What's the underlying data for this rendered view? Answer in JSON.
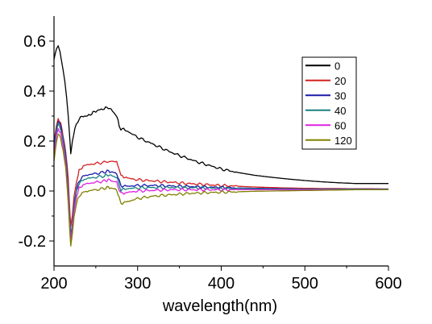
{
  "chart_data": {
    "type": "line",
    "title": "",
    "xlabel": "wavelength(nm)",
    "ylabel": "",
    "xlim": [
      200,
      600
    ],
    "ylim": [
      -0.3,
      0.7
    ],
    "xticks": [
      200,
      300,
      400,
      500,
      600
    ],
    "xtick_labels": [
      "200",
      "300",
      "400",
      "500",
      "600"
    ],
    "yticks": [
      -0.2,
      0.0,
      0.2,
      0.4,
      0.6
    ],
    "ytick_labels": [
      "-0.2",
      "0.0",
      "0.2",
      "0.4",
      "0.6"
    ],
    "grid": false,
    "legend_position": "top-right",
    "series": [
      {
        "name": "0",
        "color": "#000000",
        "points": [
          [
            200,
            0.53
          ],
          [
            203,
            0.57
          ],
          [
            205,
            0.58
          ],
          [
            207,
            0.56
          ],
          [
            209,
            0.52
          ],
          [
            211,
            0.48
          ],
          [
            213,
            0.44
          ],
          [
            215,
            0.38
          ],
          [
            217,
            0.3
          ],
          [
            219,
            0.2
          ],
          [
            220,
            0.15
          ],
          [
            222,
            0.2
          ],
          [
            225,
            0.25
          ],
          [
            230,
            0.29
          ],
          [
            235,
            0.3
          ],
          [
            240,
            0.3
          ],
          [
            245,
            0.31
          ],
          [
            250,
            0.32
          ],
          [
            255,
            0.325
          ],
          [
            260,
            0.33
          ],
          [
            265,
            0.335
          ],
          [
            270,
            0.32
          ],
          [
            275,
            0.3
          ],
          [
            278,
            0.26
          ],
          [
            280,
            0.25
          ],
          [
            285,
            0.245
          ],
          [
            290,
            0.235
          ],
          [
            300,
            0.215
          ],
          [
            310,
            0.2
          ],
          [
            320,
            0.185
          ],
          [
            330,
            0.17
          ],
          [
            340,
            0.155
          ],
          [
            350,
            0.142
          ],
          [
            360,
            0.13
          ],
          [
            370,
            0.118
          ],
          [
            380,
            0.108
          ],
          [
            390,
            0.098
          ],
          [
            400,
            0.088
          ],
          [
            420,
            0.074
          ],
          [
            440,
            0.063
          ],
          [
            460,
            0.055
          ],
          [
            480,
            0.048
          ],
          [
            500,
            0.042
          ],
          [
            520,
            0.037
          ],
          [
            540,
            0.033
          ],
          [
            555,
            0.031
          ],
          [
            560,
            0.03
          ],
          [
            580,
            0.03
          ],
          [
            600,
            0.03
          ]
        ]
      },
      {
        "name": "20",
        "color": "#d42020",
        "points": [
          [
            200,
            0.2
          ],
          [
            203,
            0.26
          ],
          [
            205,
            0.29
          ],
          [
            208,
            0.27
          ],
          [
            211,
            0.22
          ],
          [
            214,
            0.16
          ],
          [
            217,
            0.05
          ],
          [
            219,
            -0.08
          ],
          [
            220,
            -0.14
          ],
          [
            222,
            -0.1
          ],
          [
            224,
            -0.02
          ],
          [
            227,
            0.04
          ],
          [
            230,
            0.08
          ],
          [
            235,
            0.1
          ],
          [
            240,
            0.105
          ],
          [
            250,
            0.11
          ],
          [
            260,
            0.115
          ],
          [
            270,
            0.12
          ],
          [
            275,
            0.115
          ],
          [
            278,
            0.09
          ],
          [
            280,
            0.06
          ],
          [
            285,
            0.055
          ],
          [
            290,
            0.05
          ],
          [
            300,
            0.045
          ],
          [
            320,
            0.04
          ],
          [
            340,
            0.035
          ],
          [
            360,
            0.03
          ],
          [
            380,
            0.026
          ],
          [
            400,
            0.022
          ],
          [
            420,
            0.019
          ],
          [
            440,
            0.016
          ],
          [
            460,
            0.014
          ],
          [
            480,
            0.012
          ],
          [
            500,
            0.011
          ],
          [
            520,
            0.01
          ],
          [
            540,
            0.01
          ],
          [
            560,
            0.009
          ],
          [
            580,
            0.009
          ],
          [
            600,
            0.008
          ]
        ]
      },
      {
        "name": "30",
        "color": "#1a1aa8",
        "points": [
          [
            200,
            0.18
          ],
          [
            203,
            0.25
          ],
          [
            205,
            0.28
          ],
          [
            208,
            0.26
          ],
          [
            211,
            0.21
          ],
          [
            214,
            0.14
          ],
          [
            217,
            0.02
          ],
          [
            219,
            -0.12
          ],
          [
            220,
            -0.18
          ],
          [
            222,
            -0.13
          ],
          [
            224,
            -0.05
          ],
          [
            227,
            0.01
          ],
          [
            230,
            0.04
          ],
          [
            235,
            0.06
          ],
          [
            240,
            0.065
          ],
          [
            250,
            0.07
          ],
          [
            260,
            0.075
          ],
          [
            265,
            0.08
          ],
          [
            270,
            0.075
          ],
          [
            275,
            0.07
          ],
          [
            278,
            0.04
          ],
          [
            280,
            0.02
          ],
          [
            285,
            0.02
          ],
          [
            290,
            0.02
          ],
          [
            300,
            0.022
          ],
          [
            320,
            0.022
          ],
          [
            340,
            0.02
          ],
          [
            360,
            0.018
          ],
          [
            380,
            0.016
          ],
          [
            400,
            0.014
          ],
          [
            420,
            0.012
          ],
          [
            440,
            0.011
          ],
          [
            460,
            0.01
          ],
          [
            480,
            0.009
          ],
          [
            500,
            0.008
          ],
          [
            520,
            0.008
          ],
          [
            540,
            0.008
          ],
          [
            560,
            0.008
          ],
          [
            580,
            0.008
          ],
          [
            600,
            0.008
          ]
        ]
      },
      {
        "name": "40",
        "color": "#1a8080",
        "points": [
          [
            200,
            0.17
          ],
          [
            203,
            0.24
          ],
          [
            205,
            0.27
          ],
          [
            208,
            0.25
          ],
          [
            211,
            0.2
          ],
          [
            214,
            0.13
          ],
          [
            217,
            0.0
          ],
          [
            219,
            -0.13
          ],
          [
            220,
            -0.19
          ],
          [
            222,
            -0.14
          ],
          [
            224,
            -0.06
          ],
          [
            227,
            0.0
          ],
          [
            230,
            0.03
          ],
          [
            235,
            0.045
          ],
          [
            240,
            0.05
          ],
          [
            250,
            0.055
          ],
          [
            260,
            0.06
          ],
          [
            265,
            0.065
          ],
          [
            270,
            0.06
          ],
          [
            275,
            0.055
          ],
          [
            278,
            0.025
          ],
          [
            280,
            0.005
          ],
          [
            285,
            0.008
          ],
          [
            290,
            0.01
          ],
          [
            300,
            0.012
          ],
          [
            320,
            0.014
          ],
          [
            340,
            0.014
          ],
          [
            360,
            0.013
          ],
          [
            380,
            0.012
          ],
          [
            400,
            0.011
          ],
          [
            420,
            0.01
          ],
          [
            440,
            0.009
          ],
          [
            460,
            0.008
          ],
          [
            480,
            0.008
          ],
          [
            500,
            0.007
          ],
          [
            520,
            0.007
          ],
          [
            540,
            0.007
          ],
          [
            560,
            0.007
          ],
          [
            580,
            0.007
          ],
          [
            600,
            0.007
          ]
        ]
      },
      {
        "name": "60",
        "color": "#e020e0",
        "points": [
          [
            200,
            0.15
          ],
          [
            203,
            0.22
          ],
          [
            205,
            0.25
          ],
          [
            208,
            0.23
          ],
          [
            211,
            0.18
          ],
          [
            214,
            0.11
          ],
          [
            217,
            -0.02
          ],
          [
            219,
            -0.15
          ],
          [
            220,
            -0.2
          ],
          [
            222,
            -0.15
          ],
          [
            224,
            -0.08
          ],
          [
            227,
            -0.02
          ],
          [
            230,
            0.01
          ],
          [
            235,
            0.025
          ],
          [
            240,
            0.03
          ],
          [
            250,
            0.035
          ],
          [
            260,
            0.04
          ],
          [
            265,
            0.045
          ],
          [
            270,
            0.04
          ],
          [
            275,
            0.035
          ],
          [
            278,
            0.005
          ],
          [
            280,
            -0.01
          ],
          [
            285,
            -0.008
          ],
          [
            290,
            -0.005
          ],
          [
            300,
            0.0
          ],
          [
            320,
            0.003
          ],
          [
            340,
            0.005
          ],
          [
            360,
            0.005
          ],
          [
            380,
            0.005
          ],
          [
            400,
            0.005
          ],
          [
            420,
            0.005
          ],
          [
            440,
            0.005
          ],
          [
            460,
            0.005
          ],
          [
            480,
            0.005
          ],
          [
            500,
            0.005
          ],
          [
            520,
            0.005
          ],
          [
            540,
            0.005
          ],
          [
            560,
            0.005
          ],
          [
            580,
            0.006
          ],
          [
            600,
            0.006
          ]
        ]
      },
      {
        "name": "120",
        "color": "#808000",
        "points": [
          [
            200,
            0.12
          ],
          [
            203,
            0.2
          ],
          [
            205,
            0.23
          ],
          [
            208,
            0.21
          ],
          [
            211,
            0.16
          ],
          [
            214,
            0.09
          ],
          [
            217,
            -0.04
          ],
          [
            219,
            -0.17
          ],
          [
            220,
            -0.22
          ],
          [
            222,
            -0.17
          ],
          [
            224,
            -0.1
          ],
          [
            227,
            -0.05
          ],
          [
            230,
            -0.02
          ],
          [
            235,
            -0.005
          ],
          [
            240,
            0.0
          ],
          [
            250,
            0.005
          ],
          [
            260,
            0.01
          ],
          [
            265,
            0.015
          ],
          [
            270,
            0.01
          ],
          [
            275,
            0.005
          ],
          [
            278,
            -0.03
          ],
          [
            280,
            -0.05
          ],
          [
            285,
            -0.045
          ],
          [
            290,
            -0.04
          ],
          [
            300,
            -0.03
          ],
          [
            320,
            -0.02
          ],
          [
            340,
            -0.015
          ],
          [
            360,
            -0.01
          ],
          [
            380,
            -0.007
          ],
          [
            400,
            -0.005
          ],
          [
            420,
            -0.003
          ],
          [
            440,
            -0.001
          ],
          [
            460,
            0.0
          ],
          [
            480,
            0.001
          ],
          [
            500,
            0.002
          ],
          [
            520,
            0.003
          ],
          [
            540,
            0.004
          ],
          [
            560,
            0.005
          ],
          [
            580,
            0.005
          ],
          [
            600,
            0.005
          ]
        ]
      }
    ]
  }
}
